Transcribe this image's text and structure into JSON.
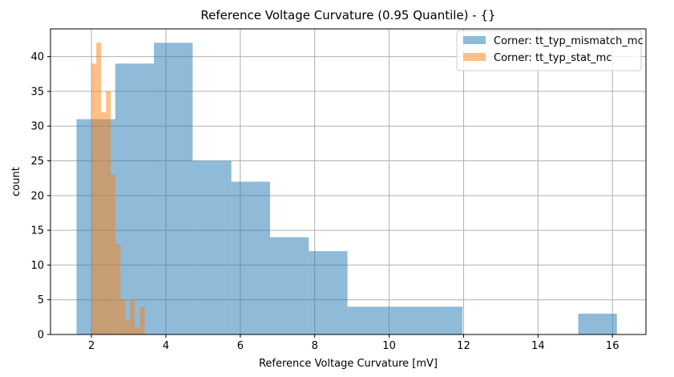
{
  "chart_data": {
    "type": "histogram",
    "title": "Reference Voltage Curvature (0.95 Quantile) - {}",
    "xlabel": "Reference Voltage Curvature [mV]",
    "ylabel": "count",
    "xlim": [
      0.9,
      16.9
    ],
    "ylim": [
      0,
      44
    ],
    "grid": true,
    "legend_position": "top-right",
    "xticks": [
      2,
      4,
      6,
      8,
      10,
      12,
      14,
      16
    ],
    "yticks": [
      0,
      5,
      10,
      15,
      20,
      25,
      30,
      35,
      40
    ],
    "series": [
      {
        "name": "Corner: tt_typ_mismatch_mc",
        "color": "#1f77b4",
        "alpha": 0.5,
        "bins": [
          {
            "x0": 1.6,
            "x1": 2.64,
            "count": 31
          },
          {
            "x0": 2.64,
            "x1": 3.68,
            "count": 39
          },
          {
            "x0": 3.68,
            "x1": 4.72,
            "count": 42
          },
          {
            "x0": 4.72,
            "x1": 5.76,
            "count": 25
          },
          {
            "x0": 5.76,
            "x1": 6.8,
            "count": 22
          },
          {
            "x0": 6.8,
            "x1": 7.84,
            "count": 14
          },
          {
            "x0": 7.84,
            "x1": 8.88,
            "count": 12
          },
          {
            "x0": 8.88,
            "x1": 11.97,
            "count": 4
          },
          {
            "x0": 11.97,
            "x1": 15.08,
            "count": 0
          },
          {
            "x0": 15.08,
            "x1": 16.12,
            "count": 3
          }
        ]
      },
      {
        "name": "Corner: tt_typ_stat_mc",
        "color": "#ff7f0e",
        "alpha": 0.5,
        "bins": [
          {
            "x0": 2.0,
            "x1": 2.13,
            "count": 39
          },
          {
            "x0": 2.13,
            "x1": 2.26,
            "count": 42
          },
          {
            "x0": 2.26,
            "x1": 2.39,
            "count": 32
          },
          {
            "x0": 2.39,
            "x1": 2.52,
            "count": 35
          },
          {
            "x0": 2.52,
            "x1": 2.65,
            "count": 23
          },
          {
            "x0": 2.65,
            "x1": 2.78,
            "count": 13
          },
          {
            "x0": 2.78,
            "x1": 2.91,
            "count": 5
          },
          {
            "x0": 2.91,
            "x1": 3.04,
            "count": 2
          },
          {
            "x0": 3.04,
            "x1": 3.17,
            "count": 5
          },
          {
            "x0": 3.17,
            "x1": 3.3,
            "count": 1
          },
          {
            "x0": 3.3,
            "x1": 3.43,
            "count": 4
          }
        ]
      }
    ]
  }
}
